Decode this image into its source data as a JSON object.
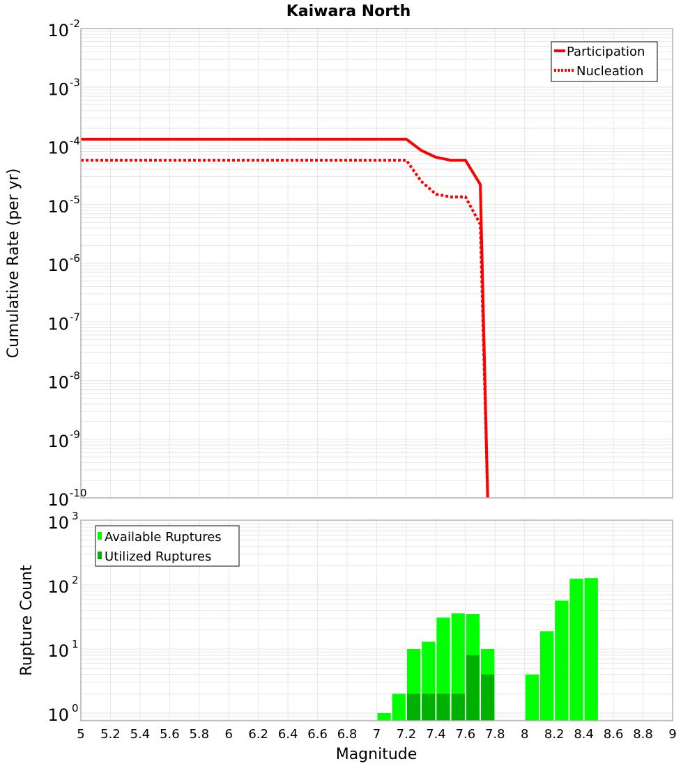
{
  "chart_data": [
    {
      "type": "line",
      "title": "Kaiwara North",
      "xlabel": "Magnitude",
      "ylabel": "Cumulative Rate (per yr)",
      "xlim": [
        5,
        9
      ],
      "ylim": [
        1e-10,
        0.01
      ],
      "yscale": "log",
      "y_ticks": [
        "10^-2",
        "10^-3",
        "10^-4",
        "10^-5",
        "10^-6",
        "10^-7",
        "10^-8",
        "10^-9",
        "10^-10"
      ],
      "grid": true,
      "legend_position": "top-right",
      "series": [
        {
          "name": "Participation",
          "style": "solid",
          "color": "#ff0000",
          "x": [
            5.0,
            7.2,
            7.3,
            7.4,
            7.5,
            7.6,
            7.7,
            7.75
          ],
          "y": [
            0.00013,
            0.00013,
            8.4e-05,
            6.4e-05,
            5.7e-05,
            5.7e-05,
            2.2e-05,
            1e-10
          ]
        },
        {
          "name": "Nucleation",
          "style": "dotted",
          "color": "#ff0000",
          "x": [
            5.0,
            7.2,
            7.3,
            7.4,
            7.5,
            7.6,
            7.7,
            7.75
          ],
          "y": [
            5.7e-05,
            5.7e-05,
            2.5e-05,
            1.5e-05,
            1.35e-05,
            1.35e-05,
            4.6e-06,
            1e-10
          ]
        }
      ]
    },
    {
      "type": "bar",
      "title": "",
      "xlabel": "Magnitude",
      "ylabel": "Rupture Count",
      "xlim": [
        5,
        9
      ],
      "ylim": [
        0.76,
        1000
      ],
      "yscale": "log",
      "y_ticks": [
        "10^0",
        "10^1",
        "10^2",
        "10^3"
      ],
      "x_ticks": [
        "5",
        "5.2",
        "5.4",
        "5.6",
        "5.8",
        "6",
        "6.2",
        "6.4",
        "6.6",
        "6.8",
        "7",
        "7.2",
        "7.4",
        "7.6",
        "7.8",
        "8",
        "8.2",
        "8.4",
        "8.6",
        "8.8",
        "9"
      ],
      "grid": true,
      "legend_position": "top-left",
      "categories": [
        7.05,
        7.15,
        7.25,
        7.35,
        7.45,
        7.55,
        7.65,
        7.75,
        8.05,
        8.15,
        8.25,
        8.35,
        8.45
      ],
      "series": [
        {
          "name": "Available Ruptures",
          "color": "#00ff00",
          "values": [
            1,
            2,
            10,
            13,
            31,
            36,
            35,
            10,
            4,
            19,
            57,
            125,
            128
          ]
        },
        {
          "name": "Utilized Ruptures",
          "color": "#00b000",
          "values": [
            0,
            0,
            2,
            2,
            2,
            2,
            8,
            4,
            0,
            0,
            0,
            0,
            0
          ]
        }
      ]
    }
  ],
  "labels": {
    "title": "Kaiwara North",
    "top_ylabel": "Cumulative Rate (per yr)",
    "bottom_ylabel": "Rupture Count",
    "xlabel": "Magnitude",
    "legend_top": [
      "Participation",
      "Nucleation"
    ],
    "legend_bottom": [
      "Available Ruptures",
      "Utilized Ruptures"
    ]
  },
  "colors": {
    "line": "#ff0000",
    "available": "#00ff00",
    "utilized": "#00b000",
    "grid": "#e6e6e6",
    "frame": "#b0b0b0"
  }
}
